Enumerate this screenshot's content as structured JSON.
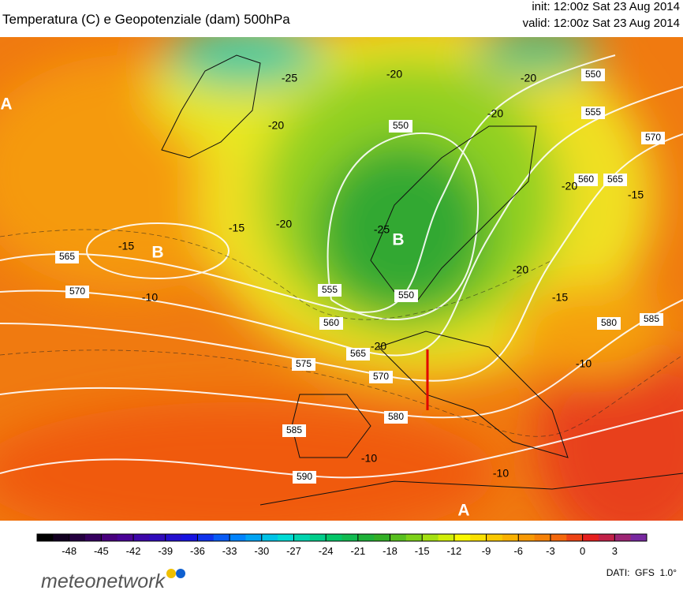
{
  "header": {
    "title": "Temperatura (C) e Geopotenziale (dam) 500hPa",
    "init": "init: 12:00z Sat 23 Aug 2014",
    "valid": "valid: 12:00z Sat 23 Aug 2014"
  },
  "map": {
    "labels": [
      "A",
      "B",
      "B",
      "A",
      "565",
      "570",
      "575",
      "570",
      "580",
      "585",
      "590",
      "565",
      "560",
      "555",
      "550",
      "550",
      "550",
      "555",
      "560",
      "565",
      "570",
      "580",
      "585",
      "-20",
      "-20",
      "-25",
      "-20",
      "-25",
      "-20",
      "-15",
      "-15",
      "-10",
      "-15",
      "-20",
      "-10",
      "-10",
      "-10",
      "-20",
      "-15",
      "-20",
      "-20"
    ]
  },
  "colorbar": {
    "ticks": [
      -48,
      -45,
      -42,
      -39,
      -36,
      -33,
      -30,
      -27,
      -24,
      -21,
      -18,
      -15,
      -12,
      -9,
      -6,
      -3,
      0,
      3
    ]
  },
  "footer": {
    "brand": "meteonetwork",
    "source": "DATI:  GFS  1.0°"
  }
}
